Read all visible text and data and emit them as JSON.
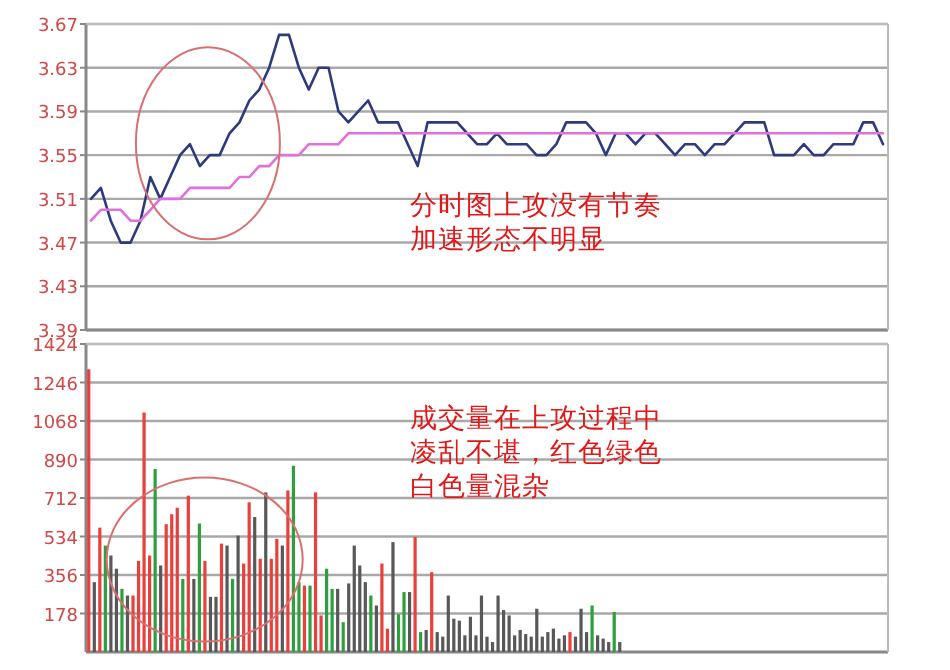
{
  "chart_data": [
    {
      "type": "line",
      "tick_labels": "y",
      "grid": "y",
      "ylim": [
        3.39,
        3.67
      ],
      "yticks": [
        3.39,
        3.43,
        3.47,
        3.51,
        3.55,
        3.59,
        3.63,
        3.67
      ],
      "annotations": [
        "分时图上攻没有节奏",
        "加速形态不明显"
      ],
      "categories": [
        null,
        null,
        null,
        null,
        null,
        null,
        null,
        null,
        null,
        null,
        null,
        null,
        null,
        null,
        null,
        null,
        null,
        null,
        null,
        null,
        null,
        null,
        null,
        null,
        null,
        null,
        null,
        null,
        null,
        null,
        null,
        null,
        null,
        null,
        null,
        null,
        null,
        null,
        null,
        null,
        null,
        null,
        null,
        null,
        null,
        null,
        null,
        null,
        null,
        null,
        null,
        null,
        null,
        null,
        null,
        null,
        null,
        null,
        null,
        null,
        null,
        null,
        null,
        null,
        null,
        null,
        null,
        null,
        null,
        null,
        null,
        null,
        null,
        null,
        null,
        null,
        null,
        null,
        null,
        null,
        null
      ],
      "series": [
        {
          "color": "#2e3a7c",
          "values": [
            3.51,
            3.52,
            3.49,
            3.47,
            3.47,
            3.49,
            3.53,
            3.51,
            3.53,
            3.55,
            3.56,
            3.54,
            3.55,
            3.55,
            3.57,
            3.58,
            3.6,
            3.61,
            3.63,
            3.66,
            3.66,
            3.63,
            3.61,
            3.63,
            3.63,
            3.59,
            3.58,
            3.59,
            3.6,
            3.58,
            3.58,
            3.58,
            3.56,
            3.54,
            3.58,
            3.58,
            3.58,
            3.58,
            3.57,
            3.56,
            3.56,
            3.57,
            3.56,
            3.56,
            3.56,
            3.55,
            3.55,
            3.56,
            3.58,
            3.58,
            3.58,
            3.57,
            3.55,
            3.57,
            3.57,
            3.56,
            3.57,
            3.57,
            3.56,
            3.55,
            3.56,
            3.56,
            3.55,
            3.56,
            3.56,
            3.57,
            3.58,
            3.58,
            3.58,
            3.55,
            3.55,
            3.55,
            3.56,
            3.55,
            3.55,
            3.56,
            3.56,
            3.56,
            3.58,
            3.58,
            3.56
          ]
        },
        {
          "color": "#e070e0",
          "values": [
            3.49,
            3.5,
            3.5,
            3.5,
            3.49,
            3.49,
            3.5,
            3.51,
            3.51,
            3.51,
            3.52,
            3.52,
            3.52,
            3.52,
            3.52,
            3.53,
            3.53,
            3.54,
            3.54,
            3.55,
            3.55,
            3.55,
            3.56,
            3.56,
            3.56,
            3.56,
            3.57,
            3.57,
            3.57,
            3.57,
            3.57,
            3.57,
            3.57,
            3.57,
            3.57,
            3.57,
            3.57,
            3.57,
            3.57,
            3.57,
            3.57,
            3.57,
            3.57,
            3.57,
            3.57,
            3.57,
            3.57,
            3.57,
            3.57,
            3.57,
            3.57,
            3.57,
            3.57,
            3.57,
            3.57,
            3.57,
            3.57,
            3.57,
            3.57,
            3.57,
            3.57,
            3.57,
            3.57,
            3.57,
            3.57,
            3.57,
            3.57,
            3.57,
            3.57,
            3.57,
            3.57,
            3.57,
            3.57,
            3.57,
            3.57,
            3.57,
            3.57,
            3.57,
            3.57,
            3.57,
            3.57
          ]
        }
      ]
    },
    {
      "type": "bar",
      "tick_labels": "y",
      "grid": "y",
      "ylim": [
        0,
        1424
      ],
      "yticks": [
        178,
        356,
        534,
        712,
        890,
        1068,
        1246,
        1424
      ],
      "annotations": [
        "成交量在上攻过程中",
        "凌乱不堪，红色绿色",
        "白色量混杂"
      ],
      "categories": [
        null,
        null,
        null,
        null,
        null,
        null,
        null,
        null,
        null,
        null,
        null,
        null,
        null,
        null,
        null,
        null,
        null,
        null,
        null,
        null,
        null,
        null,
        null,
        null,
        null,
        null,
        null,
        null,
        null,
        null,
        null,
        null,
        null,
        null,
        null,
        null,
        null,
        null,
        null,
        null,
        null,
        null,
        null,
        null,
        null,
        null,
        null,
        null,
        null,
        null,
        null,
        null,
        null,
        null,
        null,
        null,
        null,
        null,
        null,
        null,
        null,
        null,
        null,
        null,
        null,
        null,
        null,
        null,
        null,
        null,
        null,
        null,
        null,
        null,
        null,
        null,
        null,
        null,
        null,
        null,
        null,
        null,
        null,
        null,
        null,
        null,
        null,
        null,
        null,
        null,
        null,
        null,
        null,
        null,
        null,
        null,
        null,
        null,
        null,
        null,
        null,
        null,
        null,
        null,
        null,
        null,
        null,
        null,
        null,
        null,
        null,
        null,
        null,
        null,
        null,
        null,
        null,
        null,
        null,
        null,
        null,
        null,
        null,
        null,
        null,
        null,
        null,
        null,
        null,
        null,
        null,
        null,
        null,
        null,
        null,
        null,
        null,
        null,
        null,
        null,
        null,
        null,
        null,
        null,
        null
      ],
      "values": [
        1307,
        323,
        575,
        492,
        446,
        385,
        292,
        261,
        261,
        421,
        1107,
        446,
        846,
        400,
        591,
        637,
        667,
        338,
        723,
        338,
        594,
        421,
        255,
        255,
        501,
        492,
        338,
        538,
        409,
        692,
        624,
        431,
        738,
        431,
        523,
        492,
        747,
        861,
        323,
        307,
        307,
        738,
        169,
        385,
        292,
        292,
        138,
        317,
        492,
        400,
        323,
        261,
        215,
        409,
        108,
        508,
        175,
        277,
        277,
        532,
        92,
        102,
        369,
        92,
        71,
        261,
        154,
        145,
        77,
        163,
        77,
        261,
        71,
        46,
        261,
        194,
        169,
        77,
        102,
        83,
        71,
        200,
        71,
        92,
        108,
        62,
        77,
        92,
        71,
        200,
        92,
        215,
        77,
        62,
        46,
        185,
        46,
        null,
        null,
        null,
        null,
        null,
        null,
        null,
        null,
        null,
        null,
        null,
        null,
        null,
        null,
        null,
        null,
        null,
        null,
        null,
        null,
        null,
        null,
        null,
        null,
        null,
        null,
        null,
        null,
        null,
        null,
        null,
        null,
        null,
        null,
        null,
        null,
        null,
        null,
        null,
        null,
        null,
        null,
        null,
        null,
        null,
        null,
        null,
        null
      ],
      "colors": [
        "#e8403c",
        "#585858",
        "#e8403c",
        "#2e9e3e",
        "#585858",
        "#585858",
        "#2e9e3e",
        "#585858",
        "#e8403c",
        "#e8403c",
        "#e8403c",
        "#e8403c",
        "#2e9e3e",
        "#585858",
        "#e8403c",
        "#e8403c",
        "#e8403c",
        "#2e9e3e",
        "#e8403c",
        "#585858",
        "#2e9e3e",
        "#e8403c",
        "#585858",
        "#585858",
        "#e8403c",
        "#585858",
        "#2e9e3e",
        "#585858",
        "#e8403c",
        "#e8403c",
        "#585858",
        "#e8403c",
        "#585858",
        "#e8403c",
        "#e8403c",
        "#585858",
        "#e8403c",
        "#2e9e3e",
        "#2e9e3e",
        "#e8403c",
        "#2e9e3e",
        "#e8403c",
        "#e8403c",
        "#2e9e3e",
        "#2e9e3e",
        "#585858",
        "#2e9e3e",
        "#585858",
        "#585858",
        "#585858",
        "#585858",
        "#2e9e3e",
        "#585858",
        "#e8403c",
        "#e8403c",
        "#585858",
        "#2e9e3e",
        "#2e9e3e",
        "#585858",
        "#e8403c",
        "#2e9e3e",
        "#585858",
        "#e8403c",
        "#585858",
        "#585858",
        "#585858",
        "#585858",
        "#585858",
        "#585858",
        "#585858",
        "#585858",
        "#585858",
        "#585858",
        "#585858",
        "#585858",
        "#585858",
        "#585858",
        "#585858",
        "#585858",
        "#585858",
        "#585858",
        "#585858",
        "#585858",
        "#585858",
        "#585858",
        "#585858",
        "#585858",
        "#e8403c",
        "#585858",
        "#585858",
        "#585858",
        "#2e9e3e",
        "#585858",
        "#585858",
        "#585858",
        "#2e9e3e",
        "#585858",
        null,
        null,
        null,
        null,
        null,
        null,
        null,
        null,
        null,
        null,
        null,
        null,
        null,
        null,
        null,
        null,
        null,
        null,
        null,
        null,
        null,
        null,
        null,
        null,
        null,
        null,
        null,
        null,
        null,
        null,
        null,
        null,
        null,
        null,
        null,
        null,
        null,
        null,
        null,
        null,
        null,
        null,
        null,
        null,
        null,
        null,
        null,
        null
      ]
    }
  ]
}
